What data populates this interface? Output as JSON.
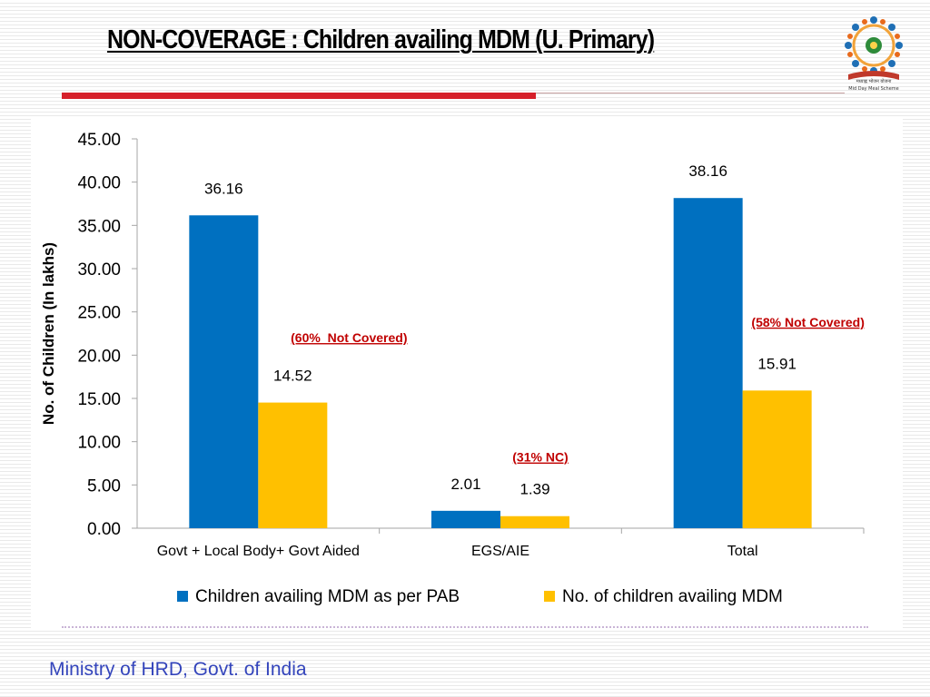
{
  "slide": {
    "title": "NON-COVERAGE : Children availing MDM (U. Primary)",
    "footer": "Ministry of HRD, Govt. of India",
    "logo_caption_line1": "मध्याह्न भोजन योजना",
    "logo_caption_line2": "Mid Day Meal Scheme"
  },
  "colors": {
    "series_pab": "#0070c0",
    "series_availing": "#ffc000",
    "annotation": "#c00000",
    "title_rule": "#d6202a"
  },
  "chart_data": {
    "type": "bar",
    "categories": [
      "Govt + Local Body+ Govt Aided",
      "EGS/AIE",
      "Total"
    ],
    "series": [
      {
        "name": "Children availing MDM as per PAB",
        "values": [
          36.16,
          2.01,
          38.16
        ],
        "labels": [
          "36.16",
          "2.01",
          "38.16"
        ]
      },
      {
        "name": "No. of children availing MDM",
        "values": [
          14.52,
          1.39,
          15.91
        ],
        "labels": [
          "14.52",
          "1.39",
          "15.91"
        ]
      }
    ],
    "ylabel": "No. of Children (In lakhs)",
    "xlabel": "",
    "ylim": [
      0,
      45
    ],
    "yticks": [
      "0.00",
      "5.00",
      "10.00",
      "15.00",
      "20.00",
      "25.00",
      "30.00",
      "35.00",
      "40.00",
      "45.00"
    ],
    "grid": false,
    "legend": "bottom",
    "annotations": [
      "(60%  Not Covered)",
      "(31% NC)",
      "(58% Not Covered)"
    ]
  }
}
